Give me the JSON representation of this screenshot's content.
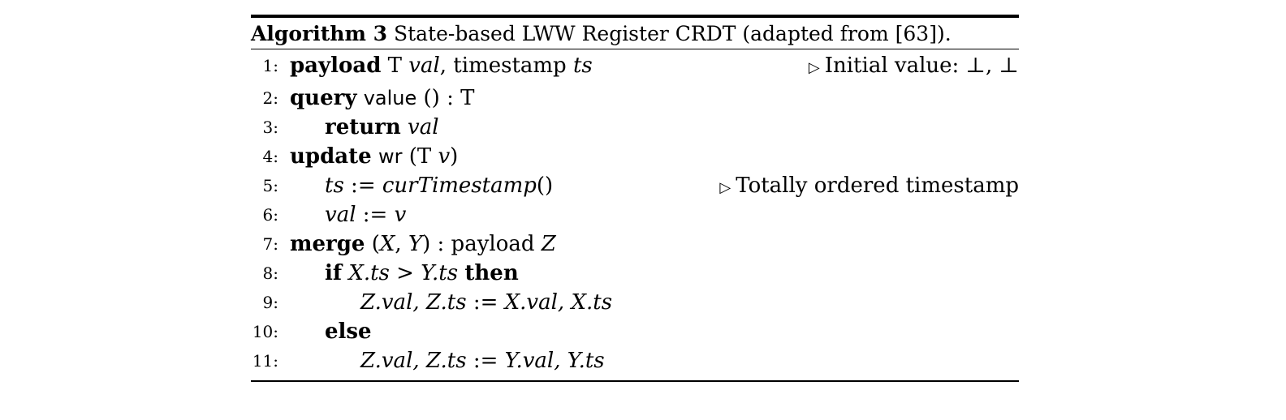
{
  "algorithm": {
    "caption_label": "Algorithm 3",
    "caption_text": "State-based LWW Register CRDT (adapted from [63]).",
    "comment_symbol": "▷",
    "lines": [
      {
        "num": "1:",
        "indent": 0,
        "tokens": [
          {
            "t": "payload",
            "s": "kw"
          },
          {
            "t": " T ",
            "s": ""
          },
          {
            "t": "val",
            "s": "it"
          },
          {
            "t": ", timestamp ",
            "s": ""
          },
          {
            "t": "ts",
            "s": "it"
          }
        ],
        "comment": "Initial value: ⊥, ⊥"
      },
      {
        "num": "2:",
        "indent": 0,
        "tokens": [
          {
            "t": "query",
            "s": "kw"
          },
          {
            "t": " ",
            "s": ""
          },
          {
            "t": "value",
            "s": "sf"
          },
          {
            "t": " () : T",
            "s": ""
          }
        ],
        "comment": ""
      },
      {
        "num": "3:",
        "indent": 1,
        "tokens": [
          {
            "t": "return",
            "s": "kw"
          },
          {
            "t": " ",
            "s": ""
          },
          {
            "t": "val",
            "s": "it"
          }
        ],
        "comment": ""
      },
      {
        "num": "4:",
        "indent": 0,
        "tokens": [
          {
            "t": "update",
            "s": "kw"
          },
          {
            "t": " ",
            "s": ""
          },
          {
            "t": "wr",
            "s": "sf"
          },
          {
            "t": " (T ",
            "s": ""
          },
          {
            "t": "v",
            "s": "it"
          },
          {
            "t": ")",
            "s": ""
          }
        ],
        "comment": ""
      },
      {
        "num": "5:",
        "indent": 1,
        "tokens": [
          {
            "t": "ts",
            "s": "it"
          },
          {
            "t": " := ",
            "s": ""
          },
          {
            "t": "curTimestamp",
            "s": "it"
          },
          {
            "t": "()",
            "s": ""
          }
        ],
        "comment": "Totally ordered timestamp"
      },
      {
        "num": "6:",
        "indent": 1,
        "tokens": [
          {
            "t": "val",
            "s": "it"
          },
          {
            "t": " := ",
            "s": ""
          },
          {
            "t": "v",
            "s": "it"
          }
        ],
        "comment": ""
      },
      {
        "num": "7:",
        "indent": 0,
        "tokens": [
          {
            "t": "merge",
            "s": "kw"
          },
          {
            "t": " (",
            "s": ""
          },
          {
            "t": "X",
            "s": "it"
          },
          {
            "t": ", ",
            "s": ""
          },
          {
            "t": "Y",
            "s": "it"
          },
          {
            "t": ") : payload ",
            "s": ""
          },
          {
            "t": "Z",
            "s": "it"
          }
        ],
        "comment": ""
      },
      {
        "num": "8:",
        "indent": 1,
        "tokens": [
          {
            "t": "if",
            "s": "kw"
          },
          {
            "t": " ",
            "s": ""
          },
          {
            "t": "X.ts",
            "s": "it"
          },
          {
            "t": " > ",
            "s": ""
          },
          {
            "t": "Y.ts",
            "s": "it"
          },
          {
            "t": " ",
            "s": ""
          },
          {
            "t": "then",
            "s": "kw"
          }
        ],
        "comment": ""
      },
      {
        "num": "9:",
        "indent": 2,
        "tokens": [
          {
            "t": "Z.val, Z.ts",
            "s": "it"
          },
          {
            "t": " := ",
            "s": ""
          },
          {
            "t": "X.val, X.ts",
            "s": "it"
          }
        ],
        "comment": ""
      },
      {
        "num": "10:",
        "indent": 1,
        "tokens": [
          {
            "t": "else",
            "s": "kw"
          }
        ],
        "comment": ""
      },
      {
        "num": "11:",
        "indent": 2,
        "tokens": [
          {
            "t": "Z.val, Z.ts",
            "s": "it"
          },
          {
            "t": " := ",
            "s": ""
          },
          {
            "t": "Y.val, Y.ts",
            "s": "it"
          }
        ],
        "comment": ""
      }
    ]
  }
}
